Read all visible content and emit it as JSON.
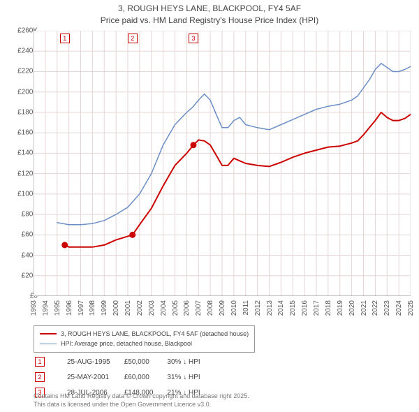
{
  "title_line1": "3, ROUGH HEYS LANE, BLACKPOOL, FY4 5AF",
  "title_line2": "Price paid vs. HM Land Registry's House Price Index (HPI)",
  "chart": {
    "type": "line",
    "x_start_year": 1993,
    "x_end_year": 2025,
    "y_min": 0,
    "y_max": 260000,
    "y_tick_step": 20000,
    "y_tick_prefix": "£",
    "y_tick_suffix_k": "K",
    "background_color": "#ffffff",
    "grid_color": "#e5d5d5",
    "axis_color": "#888888",
    "label_fontsize": 10,
    "title_fontsize": 12,
    "series": [
      {
        "id": "price_paid",
        "label": "3, ROUGH HEYS LANE, BLACKPOOL, FY4 5AF (detached house)",
        "color": "#cc0000",
        "line_width": 2,
        "marker_style": "circle",
        "marker_size": 4,
        "marker_fill": "#cc0000",
        "data": [
          [
            1995.65,
            50000
          ],
          [
            1996,
            48000
          ],
          [
            1997,
            48000
          ],
          [
            1998,
            48000
          ],
          [
            1999,
            50000
          ],
          [
            2000,
            55000
          ],
          [
            2001.4,
            60000
          ],
          [
            2002,
            70000
          ],
          [
            2003,
            86000
          ],
          [
            2004,
            108000
          ],
          [
            2005,
            128000
          ],
          [
            2006,
            140000
          ],
          [
            2006.57,
            148000
          ],
          [
            2007,
            153000
          ],
          [
            2007.5,
            152000
          ],
          [
            2008,
            148000
          ],
          [
            2008.5,
            138000
          ],
          [
            2009,
            128000
          ],
          [
            2009.5,
            128000
          ],
          [
            2010,
            135000
          ],
          [
            2011,
            130000
          ],
          [
            2012,
            128000
          ],
          [
            2013,
            127000
          ],
          [
            2014,
            131000
          ],
          [
            2015,
            136000
          ],
          [
            2016,
            140000
          ],
          [
            2017,
            143000
          ],
          [
            2018,
            146000
          ],
          [
            2019,
            147000
          ],
          [
            2020,
            150000
          ],
          [
            2020.5,
            152000
          ],
          [
            2021,
            158000
          ],
          [
            2021.5,
            165000
          ],
          [
            2022,
            172000
          ],
          [
            2022.5,
            180000
          ],
          [
            2023,
            175000
          ],
          [
            2023.5,
            172000
          ],
          [
            2024,
            172000
          ],
          [
            2024.5,
            174000
          ],
          [
            2025,
            178000
          ]
        ],
        "sale_markers": [
          {
            "year": 1995.65,
            "value": 50000
          },
          {
            "year": 2001.4,
            "value": 60000
          },
          {
            "year": 2006.57,
            "value": 148000
          }
        ]
      },
      {
        "id": "hpi",
        "label": "HPI: Average price, detached house, Blackpool",
        "color": "#6a8fc6",
        "line_width": 1.5,
        "data": [
          [
            1995,
            72000
          ],
          [
            1996,
            70000
          ],
          [
            1997,
            70000
          ],
          [
            1998,
            71000
          ],
          [
            1999,
            74000
          ],
          [
            2000,
            80000
          ],
          [
            2001,
            87000
          ],
          [
            2002,
            100000
          ],
          [
            2003,
            120000
          ],
          [
            2004,
            148000
          ],
          [
            2005,
            168000
          ],
          [
            2006,
            180000
          ],
          [
            2006.5,
            185000
          ],
          [
            2007,
            192000
          ],
          [
            2007.5,
            198000
          ],
          [
            2008,
            192000
          ],
          [
            2008.5,
            178000
          ],
          [
            2009,
            165000
          ],
          [
            2009.5,
            165000
          ],
          [
            2010,
            172000
          ],
          [
            2010.5,
            175000
          ],
          [
            2011,
            168000
          ],
          [
            2012,
            165000
          ],
          [
            2013,
            163000
          ],
          [
            2014,
            168000
          ],
          [
            2015,
            173000
          ],
          [
            2016,
            178000
          ],
          [
            2017,
            183000
          ],
          [
            2018,
            186000
          ],
          [
            2019,
            188000
          ],
          [
            2020,
            192000
          ],
          [
            2020.5,
            196000
          ],
          [
            2021,
            204000
          ],
          [
            2021.5,
            212000
          ],
          [
            2022,
            222000
          ],
          [
            2022.5,
            228000
          ],
          [
            2023,
            224000
          ],
          [
            2023.5,
            220000
          ],
          [
            2024,
            220000
          ],
          [
            2024.5,
            222000
          ],
          [
            2025,
            225000
          ]
        ]
      }
    ],
    "annotation_boxes": [
      {
        "num": "1",
        "year": 1995.65,
        "color": "#cc0000"
      },
      {
        "num": "2",
        "year": 2001.4,
        "color": "#cc0000"
      },
      {
        "num": "3",
        "year": 2006.57,
        "color": "#cc0000"
      }
    ]
  },
  "sales": [
    {
      "num": "1",
      "date": "25-AUG-1995",
      "price": "£50,000",
      "delta": "30% ↓ HPI",
      "color": "#cc0000"
    },
    {
      "num": "2",
      "date": "25-MAY-2001",
      "price": "£60,000",
      "delta": "31% ↓ HPI",
      "color": "#cc0000"
    },
    {
      "num": "3",
      "date": "28-JUL-2006",
      "price": "£148,000",
      "delta": "21% ↓ HPI",
      "color": "#cc0000"
    }
  ],
  "footer_line1": "Contains HM Land Registry data © Crown copyright and database right 2025.",
  "footer_line2": "This data is licensed under the Open Government Licence v3.0."
}
